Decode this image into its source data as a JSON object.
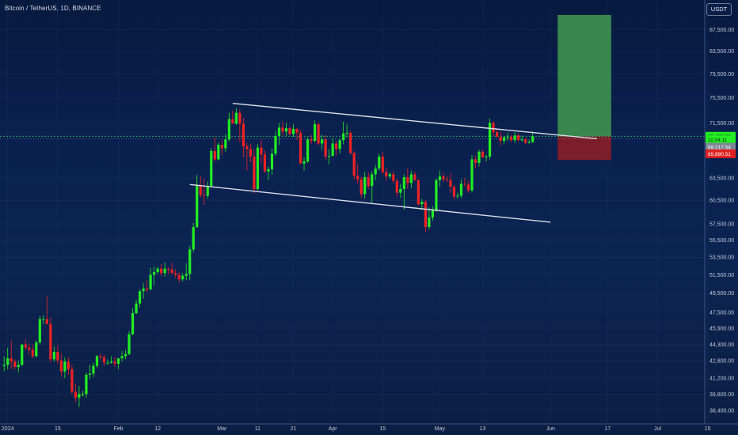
{
  "header": {
    "symbol_title": "Bitcoin / TetherUS, 1D, BINANCE",
    "currency": "USDT"
  },
  "colors": {
    "up": "#22ee22",
    "down": "#ee2222",
    "grid": "#2f4a7a",
    "target_zone": "#3e8f4f",
    "stop_zone": "#861e26",
    "trendline": "#d9dde4",
    "current_line": "#34d26a"
  },
  "chart_data": {
    "type": "candlestick",
    "title": "Bitcoin / TetherUS, 1D, BINANCE",
    "x_tick_labels": [
      "2024",
      "15",
      "Feb",
      "12",
      "Mar",
      "11",
      "21",
      "Apr",
      "15",
      "May",
      "13",
      "Jun",
      "17",
      "Jul",
      "15"
    ],
    "x_ticks": [
      {
        "label": "2024",
        "index": 1
      },
      {
        "label": "15",
        "index": 15
      },
      {
        "label": "Feb",
        "index": 32
      },
      {
        "label": "12",
        "index": 43
      },
      {
        "label": "Mar",
        "index": 61
      },
      {
        "label": "11",
        "index": 71
      },
      {
        "label": "21",
        "index": 81
      },
      {
        "label": "Apr",
        "index": 92
      },
      {
        "label": "15",
        "index": 106
      },
      {
        "label": "May",
        "index": 122
      },
      {
        "label": "13",
        "index": 134
      },
      {
        "label": "Jun",
        "index": 153
      },
      {
        "label": "17",
        "index": 169
      },
      {
        "label": "Jul",
        "index": 183
      },
      {
        "label": "15",
        "index": 197
      }
    ],
    "y_tick_labels": [
      "87,500.00",
      "83,500.00",
      "79,500.00",
      "75,500.00",
      "71,500.00",
      "63,500.00",
      "60,500.00",
      "57,500.00",
      "55,500.00",
      "53,500.00",
      "51,500.00",
      "49,500.00",
      "47,500.00",
      "45,900.00",
      "44,300.00",
      "42,800.00",
      "41,200.00",
      "39,800.00",
      "38,400.00"
    ],
    "y_ticks": [
      87500,
      83500,
      79500,
      75500,
      71500,
      63500,
      60500,
      57500,
      55500,
      53500,
      51500,
      49500,
      47500,
      45900,
      44300,
      42800,
      41200,
      39800,
      38400
    ],
    "log_scale": true,
    "ylim": [
      37700,
      92000
    ],
    "price_badges": [
      {
        "label": "69,480.00",
        "value": 69480,
        "color": "#22ee22",
        "text_color": "#0b2a10"
      },
      {
        "label": "11:04:11",
        "value": 68950,
        "color": "#22ee22",
        "text_color": "#0b2a10"
      },
      {
        "label": "69,217.54",
        "value": 67850,
        "color": "#7c8696",
        "text_color": "#ffffff"
      },
      {
        "label": "65,890.51",
        "value": 66900,
        "color": "#e02020",
        "text_color": "#ffffff"
      }
    ],
    "current_price": 69480,
    "position": {
      "start_index": 155,
      "end_index": 170,
      "entry": 69480,
      "target": 90300,
      "stop": 66000
    },
    "trendlines": [
      {
        "x1": 64,
        "y1": 74600,
        "x2": 166,
        "y2": 69100
      },
      {
        "x1": 52,
        "y1": 62600,
        "x2": 153,
        "y2": 57700
      }
    ],
    "candles_ohlc": [
      [
        42300,
        43200,
        41800,
        42400
      ],
      [
        42400,
        44000,
        42000,
        43000
      ],
      [
        43000,
        44700,
        42000,
        42700
      ],
      [
        42700,
        42900,
        42000,
        42200
      ],
      [
        42200,
        42800,
        41700,
        42400
      ],
      [
        42400,
        44300,
        42300,
        44300
      ],
      [
        44300,
        44800,
        43800,
        44000
      ],
      [
        44000,
        44400,
        43400,
        43800
      ],
      [
        43800,
        44300,
        43000,
        43200
      ],
      [
        43200,
        44700,
        43100,
        44500
      ],
      [
        44500,
        47100,
        44300,
        46800
      ],
      [
        46800,
        47200,
        46300,
        46800
      ],
      [
        46800,
        49200,
        46400,
        46300
      ],
      [
        46300,
        47000,
        42600,
        42900
      ],
      [
        42900,
        44100,
        42700,
        43600
      ],
      [
        43600,
        44200,
        42500,
        42800
      ],
      [
        42800,
        43400,
        41300,
        41800
      ],
      [
        41800,
        43100,
        41200,
        42700
      ],
      [
        42700,
        43100,
        41500,
        42000
      ],
      [
        42000,
        42400,
        39800,
        40000
      ],
      [
        40000,
        40700,
        39100,
        39500
      ],
      [
        39500,
        40500,
        38700,
        39800
      ],
      [
        39800,
        40100,
        39600,
        39800
      ],
      [
        39800,
        41700,
        39500,
        41500
      ],
      [
        41500,
        42400,
        41100,
        41600
      ],
      [
        41600,
        42600,
        41300,
        42300
      ],
      [
        42300,
        43300,
        42100,
        43200
      ],
      [
        43200,
        43400,
        42900,
        43100
      ],
      [
        43100,
        43300,
        42300,
        42600
      ],
      [
        42600,
        42900,
        42400,
        42600
      ],
      [
        42600,
        43200,
        42500,
        42700
      ],
      [
        42700,
        43100,
        42200,
        42500
      ],
      [
        42500,
        43000,
        42000,
        43000
      ],
      [
        43000,
        43700,
        42700,
        43200
      ],
      [
        43200,
        43800,
        42900,
        43400
      ],
      [
        43400,
        45600,
        43300,
        45300
      ],
      [
        45300,
        47900,
        45200,
        47400
      ],
      [
        47400,
        48800,
        47300,
        48400
      ],
      [
        48400,
        49900,
        48000,
        49700
      ],
      [
        49700,
        50600,
        48900,
        50000
      ],
      [
        50000,
        50800,
        49600,
        49900
      ],
      [
        49900,
        52300,
        49800,
        51500
      ],
      [
        51500,
        52400,
        50300,
        51800
      ],
      [
        51800,
        52400,
        51600,
        52200
      ],
      [
        52200,
        52700,
        51400,
        51700
      ],
      [
        51700,
        52900,
        51300,
        52200
      ],
      [
        52200,
        52300,
        51600,
        52100
      ],
      [
        52100,
        52900,
        51600,
        51700
      ],
      [
        51700,
        52100,
        51200,
        51500
      ],
      [
        51500,
        51800,
        50600,
        51000
      ],
      [
        51000,
        51700,
        50800,
        51400
      ],
      [
        51400,
        52800,
        50900,
        51600
      ],
      [
        51600,
        54800,
        50900,
        54400
      ],
      [
        54400,
        57600,
        54100,
        57100
      ],
      [
        57100,
        63900,
        57000,
        62500
      ],
      [
        62500,
        63800,
        60900,
        61200
      ],
      [
        61200,
        63400,
        59900,
        61100
      ],
      [
        61100,
        63000,
        60700,
        62400
      ],
      [
        62400,
        67700,
        62400,
        67300
      ],
      [
        67300,
        69400,
        65800,
        66100
      ],
      [
        66100,
        68500,
        65900,
        68200
      ],
      [
        68200,
        68900,
        66700,
        67700
      ],
      [
        67700,
        69800,
        67200,
        69000
      ],
      [
        69000,
        73100,
        68700,
        72100
      ],
      [
        72100,
        73400,
        71400,
        71400
      ],
      [
        71400,
        73800,
        71200,
        73100
      ],
      [
        73100,
        73700,
        68600,
        71400
      ],
      [
        71400,
        72300,
        66400,
        68000
      ],
      [
        68000,
        68500,
        64500,
        67600
      ],
      [
        67600,
        68400,
        65700,
        66500
      ],
      [
        66500,
        67500,
        61400,
        62000
      ],
      [
        62000,
        68300,
        61800,
        67800
      ],
      [
        67800,
        68900,
        65500,
        66800
      ],
      [
        66800,
        67400,
        64200,
        64400
      ],
      [
        64400,
        65100,
        63200,
        64700
      ],
      [
        64700,
        67700,
        63900,
        66900
      ],
      [
        66900,
        70200,
        66600,
        69500
      ],
      [
        69500,
        71500,
        68200,
        70800
      ],
      [
        70800,
        71700,
        69600,
        70200
      ],
      [
        70200,
        71500,
        69500,
        70700
      ],
      [
        70700,
        71000,
        69600,
        69800
      ],
      [
        69800,
        71300,
        69400,
        70600
      ],
      [
        70600,
        70700,
        68900,
        70000
      ],
      [
        70000,
        70400,
        65700,
        65500
      ],
      [
        65500,
        66400,
        64500,
        65800
      ],
      [
        65800,
        69300,
        65600,
        69000
      ],
      [
        69000,
        69700,
        68300,
        68800
      ],
      [
        68800,
        71900,
        68600,
        71300
      ],
      [
        71300,
        71600,
        68100,
        68400
      ],
      [
        68400,
        69700,
        67500,
        69000
      ],
      [
        69000,
        69600,
        66000,
        66500
      ],
      [
        66500,
        67600,
        65400,
        66600
      ],
      [
        66600,
        69200,
        66500,
        68400
      ],
      [
        68400,
        68800,
        66700,
        67600
      ],
      [
        67600,
        69200,
        66900,
        68900
      ],
      [
        68900,
        71700,
        68300,
        69900
      ],
      [
        69900,
        71300,
        69300,
        70000
      ],
      [
        70000,
        70300,
        66800,
        67000
      ],
      [
        67000,
        67300,
        63300,
        63800
      ],
      [
        63800,
        65500,
        62700,
        63300
      ],
      [
        63300,
        63700,
        60800,
        61300
      ],
      [
        61300,
        64300,
        60700,
        63600
      ],
      [
        63600,
        64300,
        62000,
        62400
      ],
      [
        62400,
        64400,
        60200,
        64000
      ],
      [
        64000,
        65300,
        63200,
        64800
      ],
      [
        64800,
        66900,
        64500,
        66500
      ],
      [
        66500,
        67200,
        64000,
        64300
      ],
      [
        64300,
        64900,
        63100,
        63700
      ],
      [
        63700,
        64300,
        63400,
        64000
      ],
      [
        64000,
        64500,
        62800,
        63100
      ],
      [
        63100,
        63400,
        61000,
        61500
      ],
      [
        61500,
        62700,
        60800,
        62000
      ],
      [
        62000,
        64000,
        59300,
        63600
      ],
      [
        63600,
        64800,
        62000,
        62800
      ],
      [
        62800,
        64500,
        62100,
        64000
      ],
      [
        64000,
        64400,
        63100,
        63200
      ],
      [
        63200,
        63300,
        59800,
        60000
      ],
      [
        60000,
        60700,
        59200,
        60300
      ],
      [
        60300,
        60500,
        56500,
        57100
      ],
      [
        57100,
        59600,
        56800,
        58300
      ],
      [
        58300,
        59700,
        57900,
        59200
      ],
      [
        59200,
        63400,
        59000,
        63200
      ],
      [
        63200,
        64500,
        62300,
        63700
      ],
      [
        63700,
        64200,
        62900,
        63300
      ],
      [
        63300,
        63800,
        62900,
        63200
      ],
      [
        63200,
        64200,
        61500,
        62300
      ],
      [
        62300,
        62500,
        60600,
        61000
      ],
      [
        61000,
        61500,
        60700,
        61100
      ],
      [
        61100,
        63300,
        60800,
        62700
      ],
      [
        62700,
        63500,
        62300,
        62600
      ],
      [
        62600,
        63100,
        61500,
        61800
      ],
      [
        61800,
        66700,
        61500,
        66100
      ],
      [
        66100,
        66600,
        64800,
        65600
      ],
      [
        65600,
        67500,
        65100,
        67200
      ],
      [
        67200,
        67400,
        66300,
        66400
      ],
      [
        66400,
        66700,
        65800,
        66500
      ],
      [
        66500,
        72200,
        66100,
        71500
      ],
      [
        71500,
        71800,
        69500,
        70100
      ],
      [
        70100,
        70500,
        69400,
        69400
      ],
      [
        69400,
        70200,
        68000,
        68800
      ],
      [
        68800,
        69500,
        68300,
        69300
      ],
      [
        69300,
        70000,
        68800,
        69400
      ],
      [
        69400,
        69700,
        68600,
        68900
      ],
      [
        68900,
        70100,
        68500,
        69600
      ],
      [
        69600,
        69900,
        68800,
        68900
      ],
      [
        68900,
        69600,
        68700,
        69000
      ],
      [
        69000,
        69300,
        68300,
        68500
      ],
      [
        68500,
        69000,
        68400,
        68600
      ],
      [
        68600,
        70200,
        68500,
        69480
      ]
    ]
  }
}
